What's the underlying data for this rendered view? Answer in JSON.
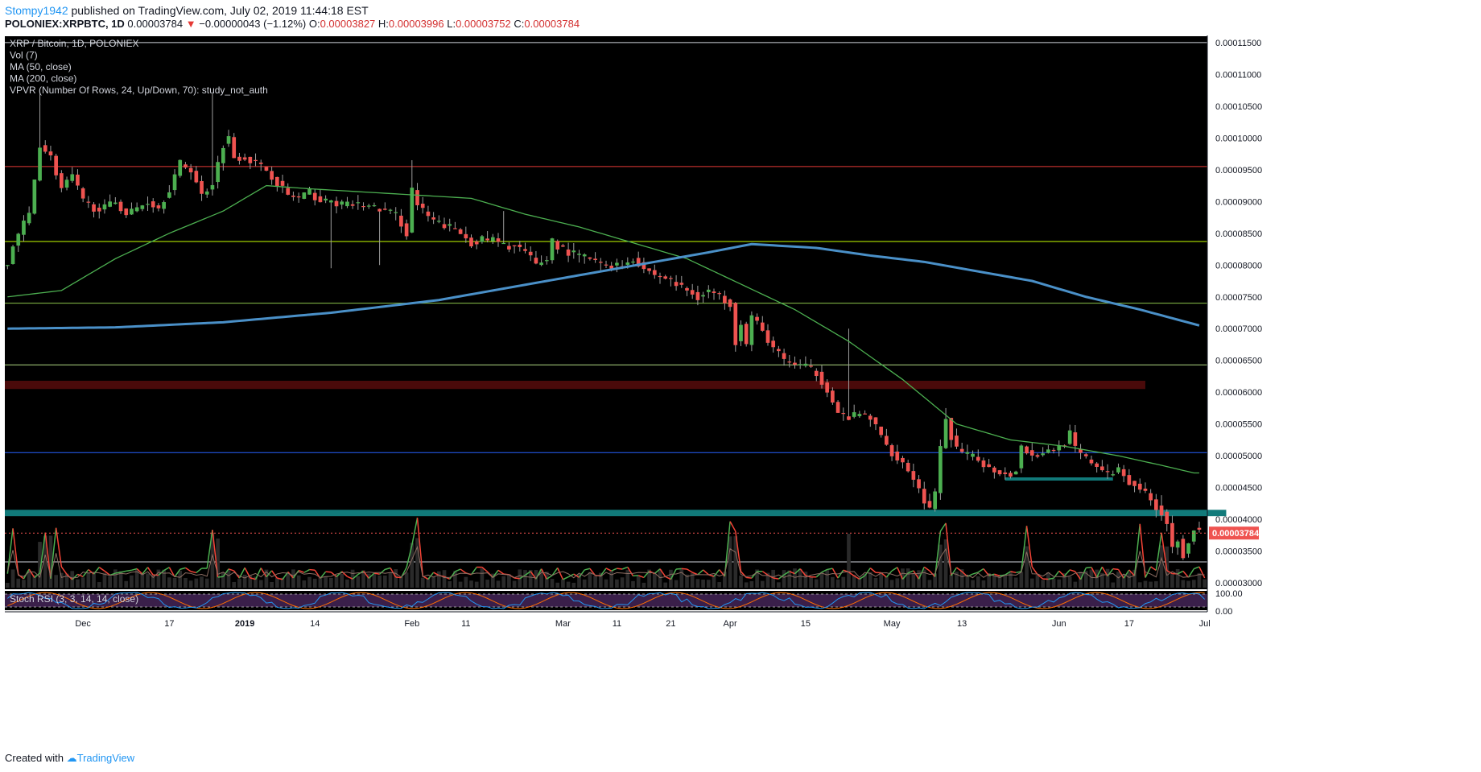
{
  "header": {
    "author": "Stompy1942",
    "published_text": "published on TradingView.com, July 02, 2019 11:44:18 EST",
    "symbol": "POLONIEX:XRPBTC, 1D",
    "last": "0.00003784",
    "change_arrow": "▼",
    "change": "−0.00000043 (−1.12%)",
    "open_label": "O:",
    "open": "0.00003827",
    "high_label": "H:",
    "high": "0.00003996",
    "low_label": "L:",
    "low": "0.00003752",
    "close_label": "C:",
    "close": "0.00003784"
  },
  "footer": {
    "created_with": "Created with",
    "brand": "TradingView"
  },
  "chart_data": {
    "type": "candlestick",
    "legend": [
      "XRP / Bitcoin, 1D, POLONIEX",
      "Vol (7)",
      "MA (50, close)",
      "MA (200, close)",
      "VPVR (Number Of Rows, 24, Up/Down, 70): study_not_auth"
    ],
    "price_axis_ticks": [
      "0.00011500",
      "0.00011000",
      "0.00010500",
      "0.00010000",
      "0.00009500",
      "0.00009000",
      "0.00008500",
      "0.00008000",
      "0.00007500",
      "0.00007000",
      "0.00006500",
      "0.00006000",
      "0.00005500",
      "0.00005000",
      "0.00004500",
      "0.00004000",
      "0.00003500",
      "0.00003000"
    ],
    "price_tick_values": [
      11.5,
      11.0,
      10.5,
      10.0,
      9.5,
      9.0,
      8.5,
      8.0,
      7.5,
      7.0,
      6.5,
      6.0,
      5.5,
      5.0,
      4.5,
      4.0,
      3.5,
      3.0
    ],
    "price_unit_scale": 1e-05,
    "ylim": [
      2.9,
      11.6
    ],
    "last_price_label": "0.00003784",
    "last_price": 3.784,
    "time_axis_ticks": [
      {
        "label": "Dec",
        "i": 14
      },
      {
        "label": "17",
        "i": 30
      },
      {
        "label": "2019",
        "i": 44
      },
      {
        "label": "14",
        "i": 57
      },
      {
        "label": "Feb",
        "i": 75
      },
      {
        "label": "11",
        "i": 85
      },
      {
        "label": "Mar",
        "i": 103
      },
      {
        "label": "11",
        "i": 113
      },
      {
        "label": "21",
        "i": 123
      },
      {
        "label": "Apr",
        "i": 134
      },
      {
        "label": "15",
        "i": 148
      },
      {
        "label": "May",
        "i": 164
      },
      {
        "label": "13",
        "i": 177
      },
      {
        "label": "Jun",
        "i": 195
      },
      {
        "label": "17",
        "i": 208
      },
      {
        "label": "Jul",
        "i": 222
      }
    ],
    "horizontal_levels": [
      {
        "value": 11.5,
        "color": "#d1d4dc"
      },
      {
        "value": 9.55,
        "color": "#e53935"
      },
      {
        "value": 8.37,
        "color": "#c6ff00"
      },
      {
        "value": 7.4,
        "color": "#8bc34a"
      },
      {
        "value": 6.43,
        "color": "#aed581"
      },
      {
        "value": 5.05,
        "color": "#2962ff"
      },
      {
        "value": 3.33,
        "color": "#d1d4dc"
      }
    ],
    "zones": [
      {
        "from": 6.05,
        "to": 6.18,
        "color": "#4a0a0a",
        "x_end_i": 211
      },
      {
        "from": 4.05,
        "to": 4.15,
        "color": "#117a7a",
        "x_end_i": 226
      },
      {
        "from": 4.61,
        "to": 4.66,
        "color": "#117a7a",
        "x_start_i": 185,
        "x_end_i": 205
      }
    ],
    "close_anchors": [
      [
        0,
        8.0
      ],
      [
        1,
        8.3
      ],
      [
        2,
        8.5
      ],
      [
        4,
        8.8
      ],
      [
        6,
        9.9
      ],
      [
        8,
        9.7
      ],
      [
        10,
        9.2
      ],
      [
        12,
        9.4
      ],
      [
        14,
        9.0
      ],
      [
        16,
        8.9
      ],
      [
        18,
        8.9
      ],
      [
        20,
        9.0
      ],
      [
        22,
        8.8
      ],
      [
        24,
        8.9
      ],
      [
        26,
        9.0
      ],
      [
        28,
        8.9
      ],
      [
        30,
        9.2
      ],
      [
        32,
        9.6
      ],
      [
        34,
        9.5
      ],
      [
        36,
        9.1
      ],
      [
        38,
        9.3
      ],
      [
        40,
        9.9
      ],
      [
        41,
        10.0
      ],
      [
        42,
        9.7
      ],
      [
        44,
        9.7
      ],
      [
        46,
        9.6
      ],
      [
        48,
        9.5
      ],
      [
        50,
        9.3
      ],
      [
        52,
        9.1
      ],
      [
        54,
        9.05
      ],
      [
        56,
        9.15
      ],
      [
        58,
        9.0
      ],
      [
        60,
        9.0
      ],
      [
        62,
        8.95
      ],
      [
        64,
        8.95
      ],
      [
        66,
        8.95
      ],
      [
        68,
        8.9
      ],
      [
        70,
        8.85
      ],
      [
        72,
        8.8
      ],
      [
        74,
        8.5
      ],
      [
        75,
        9.2
      ],
      [
        76,
        8.95
      ],
      [
        78,
        8.75
      ],
      [
        80,
        8.65
      ],
      [
        82,
        8.6
      ],
      [
        84,
        8.5
      ],
      [
        86,
        8.35
      ],
      [
        88,
        8.4
      ],
      [
        90,
        8.4
      ],
      [
        92,
        8.3
      ],
      [
        94,
        8.3
      ],
      [
        96,
        8.2
      ],
      [
        98,
        8.0
      ],
      [
        100,
        8.1
      ],
      [
        101,
        8.4
      ],
      [
        102,
        8.3
      ],
      [
        104,
        8.2
      ],
      [
        106,
        8.15
      ],
      [
        108,
        8.1
      ],
      [
        110,
        8.0
      ],
      [
        112,
        8.0
      ],
      [
        114,
        8.0
      ],
      [
        116,
        8.1
      ],
      [
        118,
        7.95
      ],
      [
        120,
        7.85
      ],
      [
        122,
        7.8
      ],
      [
        124,
        7.7
      ],
      [
        126,
        7.6
      ],
      [
        128,
        7.5
      ],
      [
        130,
        7.6
      ],
      [
        132,
        7.5
      ],
      [
        134,
        7.4
      ],
      [
        135,
        6.8
      ],
      [
        136,
        7.1
      ],
      [
        137,
        6.75
      ],
      [
        138,
        7.2
      ],
      [
        140,
        6.95
      ],
      [
        142,
        6.7
      ],
      [
        144,
        6.5
      ],
      [
        146,
        6.45
      ],
      [
        148,
        6.4
      ],
      [
        150,
        6.3
      ],
      [
        152,
        6.05
      ],
      [
        154,
        5.65
      ],
      [
        156,
        5.6
      ],
      [
        158,
        5.65
      ],
      [
        160,
        5.6
      ],
      [
        162,
        5.3
      ],
      [
        164,
        5.05
      ],
      [
        166,
        4.9
      ],
      [
        168,
        4.65
      ],
      [
        170,
        4.3
      ],
      [
        171,
        4.15
      ],
      [
        172,
        4.4
      ],
      [
        173,
        5.1
      ],
      [
        174,
        5.6
      ],
      [
        175,
        5.3
      ],
      [
        176,
        5.1
      ],
      [
        178,
        5.0
      ],
      [
        180,
        4.95
      ],
      [
        182,
        4.8
      ],
      [
        184,
        4.75
      ],
      [
        186,
        4.7
      ],
      [
        187,
        4.8
      ],
      [
        188,
        5.15
      ],
      [
        190,
        5.0
      ],
      [
        192,
        5.05
      ],
      [
        194,
        5.1
      ],
      [
        196,
        5.2
      ],
      [
        197,
        5.35
      ],
      [
        198,
        5.1
      ],
      [
        200,
        4.95
      ],
      [
        202,
        4.85
      ],
      [
        204,
        4.7
      ],
      [
        206,
        4.8
      ],
      [
        208,
        4.6
      ],
      [
        210,
        4.5
      ],
      [
        212,
        4.3
      ],
      [
        214,
        4.1
      ],
      [
        215,
        3.95
      ],
      [
        216,
        3.55
      ],
      [
        217,
        3.7
      ],
      [
        218,
        3.45
      ],
      [
        219,
        3.65
      ],
      [
        220,
        3.85
      ],
      [
        221,
        3.8
      ]
    ],
    "highlight_wicks": [
      {
        "i": 6,
        "high": 10.7
      },
      {
        "i": 38,
        "high": 10.7
      },
      {
        "i": 75,
        "high": 9.65
      },
      {
        "i": 60,
        "low": 7.95
      },
      {
        "i": 69,
        "low": 8.0
      },
      {
        "i": 92,
        "high": 8.85
      },
      {
        "i": 156,
        "high": 7.0
      },
      {
        "i": 174,
        "high": 5.75
      },
      {
        "i": 214,
        "high": 4.38
      }
    ],
    "ma50_anchors": [
      [
        0,
        7.5
      ],
      [
        10,
        7.6
      ],
      [
        20,
        8.1
      ],
      [
        30,
        8.5
      ],
      [
        40,
        8.85
      ],
      [
        48,
        9.25
      ],
      [
        56,
        9.2
      ],
      [
        66,
        9.15
      ],
      [
        76,
        9.1
      ],
      [
        86,
        9.05
      ],
      [
        96,
        8.8
      ],
      [
        106,
        8.6
      ],
      [
        116,
        8.35
      ],
      [
        126,
        8.1
      ],
      [
        136,
        7.7
      ],
      [
        146,
        7.3
      ],
      [
        156,
        6.8
      ],
      [
        166,
        6.2
      ],
      [
        176,
        5.5
      ],
      [
        186,
        5.25
      ],
      [
        196,
        5.15
      ],
      [
        206,
        5.0
      ],
      [
        214,
        4.85
      ],
      [
        220,
        4.73
      ]
    ],
    "ma200_anchors": [
      [
        0,
        7.0
      ],
      [
        20,
        7.02
      ],
      [
        40,
        7.1
      ],
      [
        60,
        7.25
      ],
      [
        80,
        7.45
      ],
      [
        100,
        7.75
      ],
      [
        120,
        8.05
      ],
      [
        130,
        8.2
      ],
      [
        138,
        8.33
      ],
      [
        150,
        8.27
      ],
      [
        160,
        8.15
      ],
      [
        170,
        8.05
      ],
      [
        180,
        7.9
      ],
      [
        190,
        7.75
      ],
      [
        200,
        7.5
      ],
      [
        210,
        7.3
      ],
      [
        221,
        7.05
      ]
    ],
    "volume_note": "Vol (7) overlay on the lower price area",
    "stoch_rsi": {
      "label": "Stoch RSI (3, 3, 14, 14, close)",
      "ticks": [
        "100.00",
        "0.00"
      ],
      "upper": 80,
      "lower": 20
    }
  }
}
